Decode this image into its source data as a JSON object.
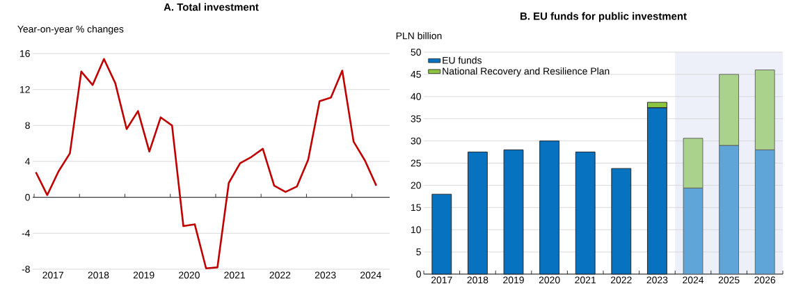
{
  "chart_data": [
    {
      "type": "line",
      "title": "A. Total investment",
      "ylabel": "Year-on-year % changes",
      "x": [
        "2017-01-15",
        "2017-04-15",
        "2017-07-15",
        "2017-10-15",
        "2018-01-15",
        "2018-04-15",
        "2018-07-15",
        "2018-10-15",
        "2019-01-15",
        "2019-04-15",
        "2019-07-15",
        "2019-10-15",
        "2020-01-15",
        "2020-04-15",
        "2020-07-15",
        "2020-10-15",
        "2021-01-15",
        "2021-04-15",
        "2021-07-15",
        "2021-10-15",
        "2022-01-15",
        "2022-04-15",
        "2022-07-15",
        "2022-10-15",
        "2023-01-15",
        "2023-04-15",
        "2023-07-15",
        "2023-10-15",
        "2024-01-15",
        "2024-04-15",
        "2024-07-15"
      ],
      "series": [
        {
          "color": "#c00000",
          "values": [
            2.8,
            0.25,
            2.9,
            4.9,
            14.0,
            12.5,
            15.4,
            12.7,
            7.6,
            9.6,
            5.1,
            8.9,
            8.0,
            -3.2,
            -3.0,
            -7.9,
            -7.8,
            1.6,
            3.8,
            4.5,
            5.4,
            1.3,
            0.6,
            1.2,
            4.2,
            10.7,
            11.1,
            14.1,
            6.2,
            4.1,
            1.3
          ]
        }
      ],
      "xlim": [
        "2016-12-20",
        "2024-11"
      ],
      "xticks": [
        {
          "value": "2017",
          "label": null
        },
        {
          "value": "2018",
          "label": null
        },
        {
          "value": "2019",
          "label": null
        },
        {
          "value": "2020",
          "label": null
        },
        {
          "value": "2021",
          "label": null
        },
        {
          "value": "2022",
          "label": null
        },
        {
          "value": "2023",
          "label": null
        },
        {
          "value": "2024",
          "label": null
        },
        {
          "value": "2017-06",
          "label": "2017"
        },
        {
          "value": "2018-06",
          "label": "2018"
        },
        {
          "value": "2019-06",
          "label": "2019"
        },
        {
          "value": "2020-06",
          "label": "2020"
        },
        {
          "value": "2021-06",
          "label": "2021"
        },
        {
          "value": "2022-06",
          "label": "2022"
        },
        {
          "value": "2023-06",
          "label": "2023"
        },
        {
          "value": "2024-06",
          "label": "2024"
        }
      ],
      "ylim": [
        -8,
        16
      ],
      "yticks": [
        -8,
        -4,
        0,
        4,
        8,
        12,
        16
      ],
      "grid": "y"
    },
    {
      "type": "bar",
      "stacked": true,
      "title": "B. EU funds for public investment",
      "ylabel": "PLN billion",
      "categories": [
        "2017",
        "2018",
        "2019",
        "2020",
        "2021",
        "2022",
        "2023",
        "2024",
        "2025",
        "2026"
      ],
      "series": [
        {
          "name": "EU funds",
          "color": "#0773c0",
          "colors": [
            "#0773c0",
            "#0773c0",
            "#0773c0",
            "#0773c0",
            "#0773c0",
            "#0773c0",
            "#0773c0",
            "#5fa5d8",
            "#5fa5d8",
            "#5fa5d8"
          ],
          "values": [
            18,
            27.5,
            28,
            30,
            27.5,
            23.8,
            37.5,
            19.4,
            29,
            28
          ]
        },
        {
          "name": "National Recovery and Resilience Plan",
          "color": "#8cc63f",
          "colors": [
            null,
            null,
            null,
            null,
            null,
            null,
            "#8cc63f",
            "#abd28d",
            "#abd28d",
            "#abd28d"
          ],
          "values": [
            null,
            null,
            null,
            null,
            null,
            null,
            1.2,
            11.2,
            16,
            18
          ]
        }
      ],
      "ylim": [
        0,
        50
      ],
      "yticks": [
        0,
        5,
        10,
        15,
        20,
        25,
        30,
        35,
        40,
        45,
        50
      ],
      "grid": "y",
      "legend": "top left",
      "bands": [
        {
          "axis": "x",
          "from": "2024",
          "to": "2026",
          "color": "#edf0f8"
        }
      ]
    }
  ]
}
